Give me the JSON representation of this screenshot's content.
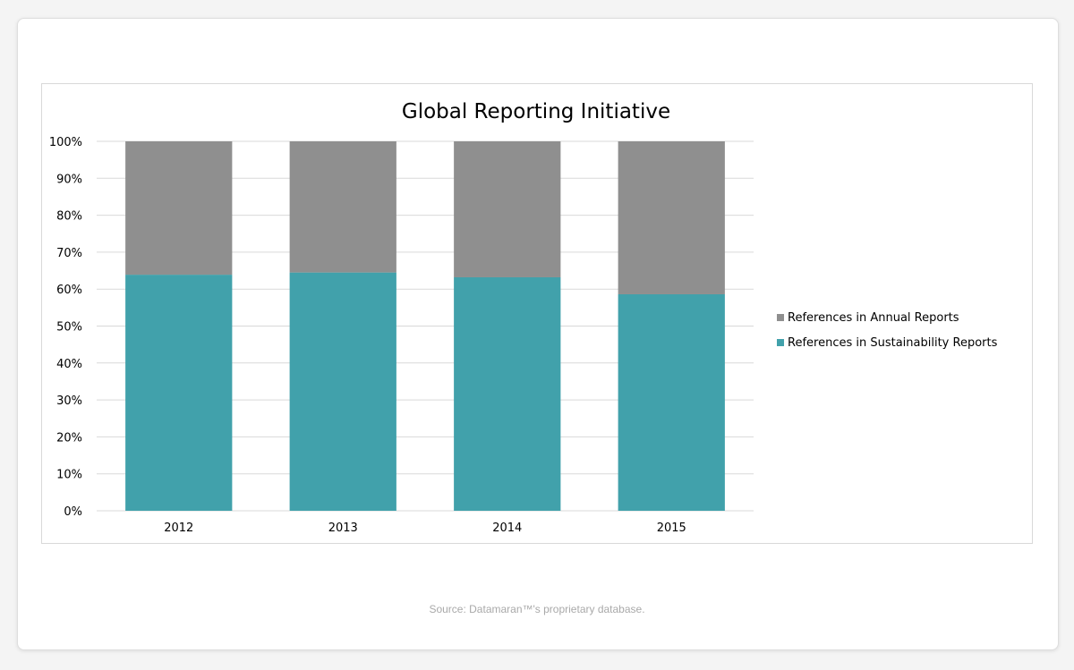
{
  "source_text": "Source: Datamaran™'s proprietary database.",
  "colors": {
    "sustainability": "#41a1ab",
    "annual": "#8f8f8f",
    "grid": "#d9d9d9",
    "text": "#000000"
  },
  "chart_data": {
    "type": "bar",
    "stacked": true,
    "percent": true,
    "title": "Global Reporting Initiative",
    "categories": [
      "2012",
      "2013",
      "2014",
      "2015"
    ],
    "ylim": [
      0,
      100
    ],
    "yticks": [
      0,
      10,
      20,
      30,
      40,
      50,
      60,
      70,
      80,
      90,
      100
    ],
    "ytick_labels": [
      "0%",
      "10%",
      "20%",
      "30%",
      "40%",
      "50%",
      "60%",
      "70%",
      "80%",
      "90%",
      "100%"
    ],
    "grid": true,
    "legend_position": "right",
    "series": [
      {
        "name": "References in Sustainability Reports",
        "color": "#41a1ab",
        "values": [
          63.9,
          64.5,
          63.2,
          58.6
        ]
      },
      {
        "name": "References in Annual Reports",
        "color": "#8f8f8f",
        "values": [
          36.1,
          35.5,
          36.8,
          41.4
        ]
      }
    ],
    "legend_order": [
      "References in Annual Reports",
      "References in Sustainability Reports"
    ]
  }
}
